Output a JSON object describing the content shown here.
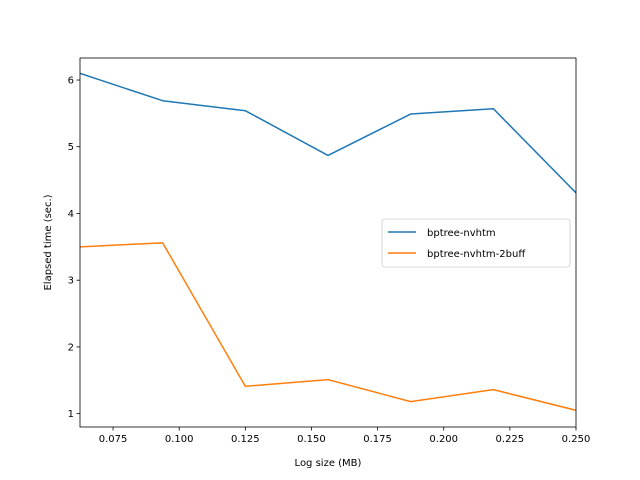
{
  "chart_data": {
    "type": "line",
    "title": "",
    "xlabel": "Log size (MB)",
    "ylabel": "Elapsed time (sec.)",
    "xlim": [
      0.0625,
      0.25
    ],
    "ylim": [
      0.8,
      6.33
    ],
    "grid": false,
    "legend_position": "center-right",
    "x": [
      0.0625,
      0.09375,
      0.125,
      0.15625,
      0.1875,
      0.21875,
      0.25
    ],
    "series": [
      {
        "name": "bptree-nvhtm",
        "color": "#1f77b4",
        "values": [
          6.1,
          5.69,
          5.54,
          4.87,
          5.49,
          5.57,
          4.31
        ]
      },
      {
        "name": "bptree-nvhtm-2buff",
        "color": "#ff7f0e",
        "values": [
          3.5,
          3.56,
          1.41,
          1.51,
          1.18,
          1.36,
          1.05
        ]
      }
    ],
    "xticks": [
      "0.075",
      "0.100",
      "0.125",
      "0.150",
      "0.175",
      "0.200",
      "0.225",
      "0.250"
    ],
    "yticks": [
      "1",
      "2",
      "3",
      "4",
      "5",
      "6"
    ]
  }
}
